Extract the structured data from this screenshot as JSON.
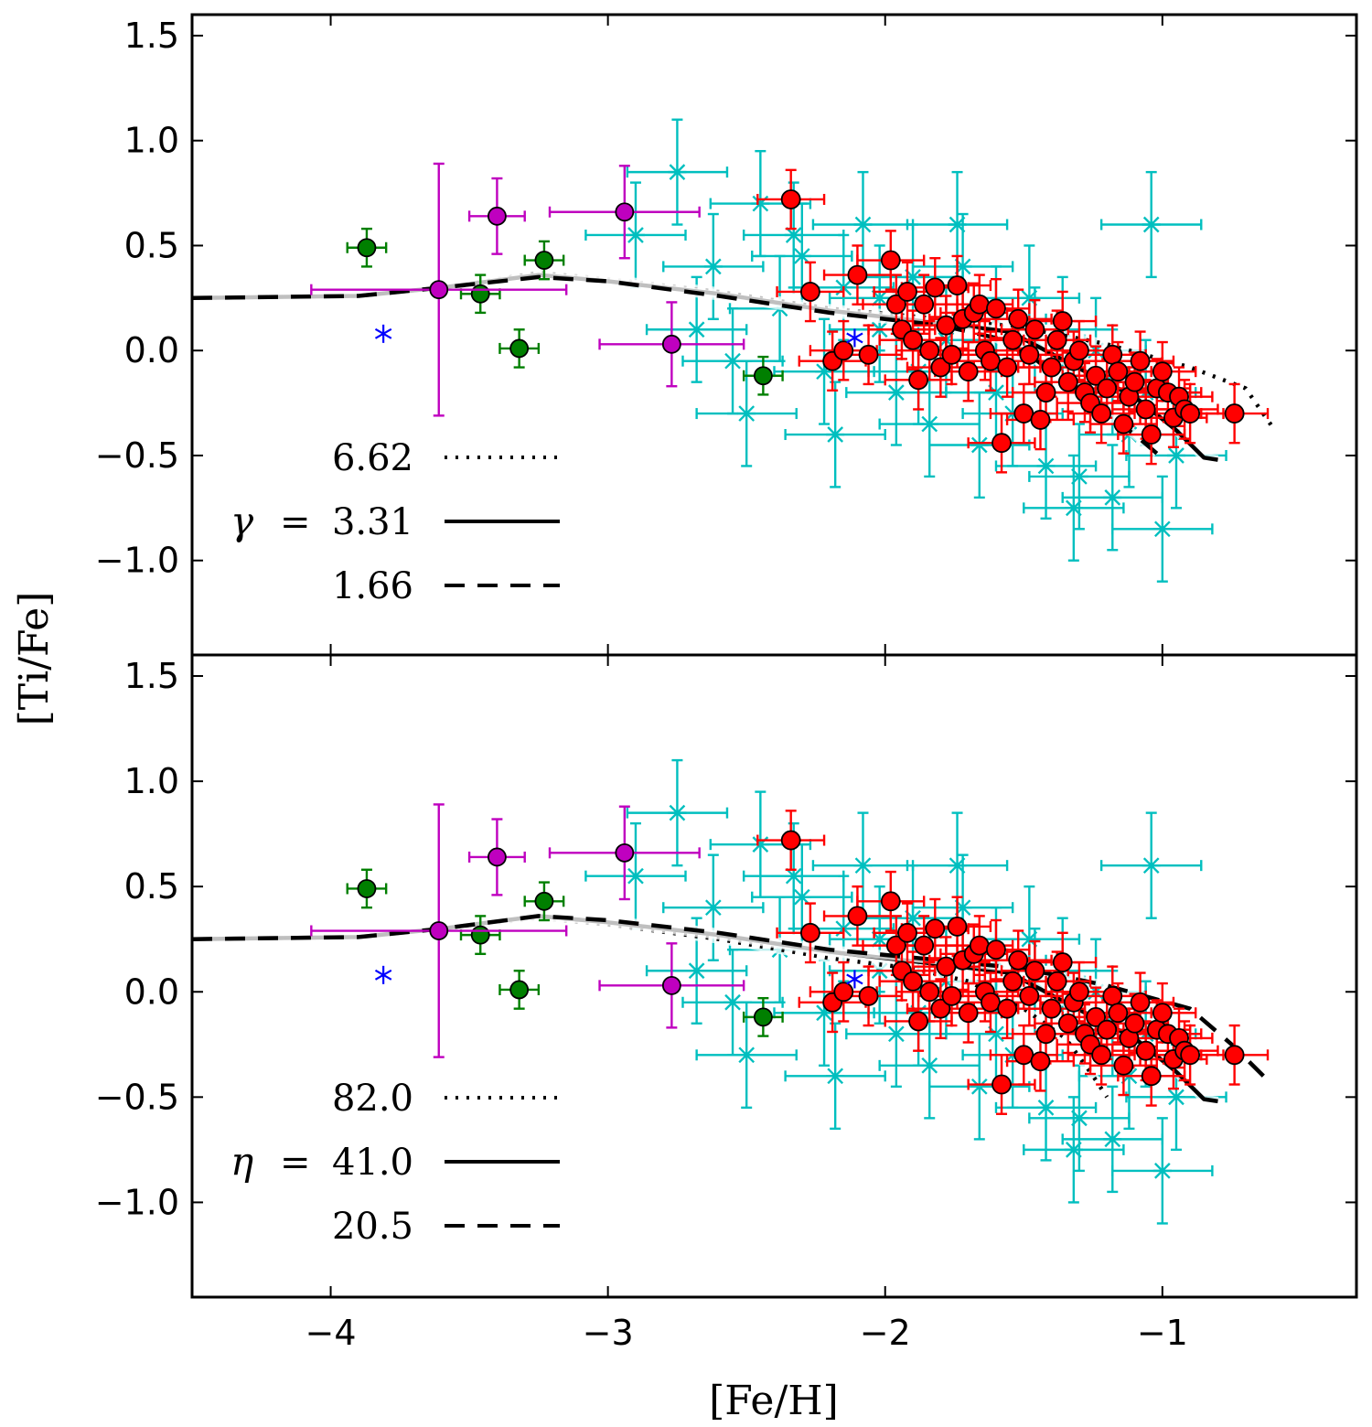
{
  "chart_data": [
    {
      "type": "scatter",
      "panel": "top",
      "xlabel": "",
      "ylabel": "[Ti/Fe]",
      "xlim": [
        -4.5,
        -0.3
      ],
      "ylim": [
        -1.45,
        1.6
      ],
      "xticks": [
        -4,
        -3,
        -2,
        -1
      ],
      "xtick_labels": [
        "",
        "",
        "",
        ""
      ],
      "yticks": [
        -1.0,
        -0.5,
        0.0,
        0.5,
        1.0,
        1.5
      ],
      "ytick_labels": [
        "−1.0",
        "−0.5",
        "0.0",
        "0.5",
        "1.0",
        "1.5"
      ],
      "grid": false,
      "legend": {
        "placement": "lower-left",
        "symbol": "γ",
        "equals": "=",
        "entries": [
          {
            "label": "6.62",
            "style": "dotted"
          },
          {
            "label": "3.31",
            "style": "solid"
          },
          {
            "label": "1.66",
            "style": "dashed"
          }
        ]
      },
      "model_curves": [
        {
          "style": "dotted",
          "points": [
            [
              -4.5,
              0.25
            ],
            [
              -3.9,
              0.26
            ],
            [
              -3.6,
              0.3
            ],
            [
              -3.25,
              0.37
            ],
            [
              -3.0,
              0.34
            ],
            [
              -2.6,
              0.28
            ],
            [
              -2.2,
              0.2
            ],
            [
              -1.8,
              0.15
            ],
            [
              -1.5,
              0.11
            ],
            [
              -1.2,
              0.03
            ],
            [
              -0.9,
              -0.08
            ],
            [
              -0.7,
              -0.18
            ],
            [
              -0.6,
              -0.37
            ]
          ]
        },
        {
          "style": "solid",
          "points": [
            [
              -4.5,
              0.25
            ],
            [
              -3.9,
              0.26
            ],
            [
              -3.6,
              0.3
            ],
            [
              -3.25,
              0.36
            ],
            [
              -3.0,
              0.33
            ],
            [
              -2.6,
              0.27
            ],
            [
              -2.2,
              0.19
            ],
            [
              -1.8,
              0.13
            ],
            [
              -1.55,
              0.09
            ],
            [
              -1.45,
              0.02
            ],
            [
              -1.25,
              -0.12
            ],
            [
              -1.1,
              -0.22
            ],
            [
              -0.95,
              -0.38
            ],
            [
              -0.85,
              -0.51
            ],
            [
              -0.8,
              -0.52
            ]
          ]
        },
        {
          "style": "dashed",
          "points": [
            [
              -4.5,
              0.25
            ],
            [
              -3.9,
              0.26
            ],
            [
              -3.6,
              0.3
            ],
            [
              -3.25,
              0.35
            ],
            [
              -3.0,
              0.33
            ],
            [
              -2.6,
              0.26
            ],
            [
              -2.2,
              0.18
            ],
            [
              -1.8,
              0.12
            ],
            [
              -1.6,
              0.06
            ],
            [
              -1.45,
              -0.05
            ],
            [
              -1.25,
              -0.26
            ],
            [
              -1.1,
              -0.4
            ],
            [
              -1.02,
              -0.49
            ]
          ]
        }
      ],
      "series": [
        {
          "marker": "green-circle",
          "x": [
            -3.87,
            -3.46,
            -3.32,
            -3.23,
            -2.44
          ],
          "y": [
            0.49,
            0.27,
            0.01,
            0.43,
            -0.12
          ],
          "xerr": 0.07,
          "yerr": 0.09
        },
        {
          "marker": "magenta-circle",
          "x": [
            -3.61,
            -3.4,
            -2.94,
            -2.77
          ],
          "y": [
            0.29,
            0.64,
            0.66,
            0.03
          ],
          "xerr": [
            0.46,
            0.1,
            0.27,
            0.26
          ],
          "yerr": [
            0.6,
            0.18,
            0.22,
            0.2
          ]
        },
        {
          "marker": "blue-star",
          "x": [
            -3.81,
            -2.11
          ],
          "y": [
            0.08,
            0.06
          ]
        },
        {
          "marker": "red-circle",
          "x": [
            -2.34,
            -2.27,
            -2.19,
            -2.15,
            -2.1,
            -2.06,
            -1.98,
            -1.96,
            -1.94,
            -1.92,
            -1.9,
            -1.88,
            -1.86,
            -1.84,
            -1.82,
            -1.8,
            -1.78,
            -1.76,
            -1.74,
            -1.72,
            -1.7,
            -1.68,
            -1.66,
            -1.64,
            -1.62,
            -1.6,
            -1.58,
            -1.56,
            -1.54,
            -1.52,
            -1.5,
            -1.48,
            -1.46,
            -1.44,
            -1.42,
            -1.4,
            -1.38,
            -1.36,
            -1.34,
            -1.32,
            -1.3,
            -1.28,
            -1.26,
            -1.24,
            -1.22,
            -1.2,
            -1.18,
            -1.16,
            -1.14,
            -1.12,
            -1.1,
            -1.08,
            -1.06,
            -1.04,
            -1.02,
            -1.0,
            -0.98,
            -0.96,
            -0.94,
            -0.92,
            -0.9,
            -0.74
          ],
          "y": [
            0.72,
            0.28,
            -0.05,
            0.0,
            0.36,
            -0.02,
            0.43,
            0.22,
            0.1,
            0.28,
            0.05,
            -0.14,
            0.22,
            0.0,
            0.3,
            -0.08,
            0.12,
            -0.02,
            0.31,
            0.15,
            -0.1,
            0.18,
            0.22,
            0.0,
            -0.05,
            0.2,
            -0.44,
            -0.08,
            0.05,
            0.15,
            -0.3,
            -0.02,
            0.1,
            -0.33,
            -0.2,
            -0.08,
            0.05,
            0.14,
            -0.15,
            -0.05,
            0.0,
            -0.2,
            -0.25,
            -0.12,
            -0.3,
            -0.18,
            -0.02,
            -0.1,
            -0.35,
            -0.22,
            -0.15,
            -0.05,
            -0.28,
            -0.4,
            -0.18,
            -0.1,
            -0.2,
            -0.32,
            -0.22,
            -0.28,
            -0.3,
            -0.3
          ],
          "xerr": 0.12,
          "yerr": 0.14
        },
        {
          "marker": "cyan-x",
          "note": "",
          "x": [
            -2.9,
            -2.75,
            -2.62,
            -2.55,
            -2.45,
            -2.38,
            -2.3,
            -2.22,
            -2.15,
            -2.08,
            -2.02,
            -1.96,
            -1.9,
            -1.84,
            -1.78,
            -1.72,
            -1.66,
            -1.6,
            -1.54,
            -1.48,
            -1.42,
            -1.36,
            -1.3,
            -1.24,
            -1.18,
            -1.12,
            -1.06,
            -1.0,
            -0.95,
            -2.68,
            -2.5,
            -2.33,
            -2.18,
            -2.02,
            -1.88,
            -1.74,
            -1.6,
            -1.46,
            -1.32,
            -1.18,
            -1.04
          ],
          "y": [
            0.55,
            0.85,
            0.4,
            -0.05,
            0.7,
            0.2,
            0.45,
            -0.1,
            0.3,
            0.6,
            0.1,
            -0.2,
            0.35,
            -0.35,
            0.05,
            0.4,
            -0.45,
            0.15,
            -0.3,
            0.25,
            -0.55,
            0.1,
            -0.6,
            0.0,
            -0.7,
            -0.4,
            -0.2,
            -0.85,
            -0.5,
            0.1,
            -0.3,
            0.55,
            -0.4,
            0.25,
            -0.1,
            0.6,
            -0.2,
            0.05,
            -0.75,
            -0.15,
            0.6
          ],
          "xerr": 0.18,
          "yerr": 0.25
        }
      ]
    },
    {
      "type": "scatter",
      "panel": "bottom",
      "xlabel": "[Fe/H]",
      "ylabel": "[Ti/Fe]",
      "xlim": [
        -4.5,
        -0.3
      ],
      "ylim": [
        -1.45,
        1.6
      ],
      "xticks": [
        -4,
        -3,
        -2,
        -1
      ],
      "xtick_labels": [
        "−4",
        "−3",
        "−2",
        "−1"
      ],
      "yticks": [
        -1.0,
        -0.5,
        0.0,
        0.5,
        1.0,
        1.5
      ],
      "ytick_labels": [
        "−1.0",
        "−0.5",
        "0.0",
        "0.5",
        "1.0",
        "1.5"
      ],
      "grid": false,
      "legend": {
        "placement": "lower-left",
        "symbol": "η",
        "equals": "=",
        "entries": [
          {
            "label": "82.0",
            "style": "dotted"
          },
          {
            "label": "41.0",
            "style": "solid"
          },
          {
            "label": "20.5",
            "style": "dashed"
          }
        ]
      },
      "model_curves": [
        {
          "style": "dotted",
          "points": [
            [
              -4.5,
              0.25
            ],
            [
              -3.9,
              0.26
            ],
            [
              -3.6,
              0.3
            ],
            [
              -3.25,
              0.35
            ],
            [
              -3.0,
              0.32
            ],
            [
              -2.6,
              0.25
            ],
            [
              -2.2,
              0.16
            ],
            [
              -1.9,
              0.11
            ],
            [
              -1.7,
              0.05
            ],
            [
              -1.5,
              -0.08
            ],
            [
              -1.35,
              -0.22
            ],
            [
              -1.25,
              -0.4
            ],
            [
              -1.2,
              -0.5
            ]
          ]
        },
        {
          "style": "solid",
          "points": [
            [
              -4.5,
              0.25
            ],
            [
              -3.9,
              0.26
            ],
            [
              -3.6,
              0.3
            ],
            [
              -3.25,
              0.36
            ],
            [
              -3.0,
              0.33
            ],
            [
              -2.6,
              0.27
            ],
            [
              -2.2,
              0.19
            ],
            [
              -1.8,
              0.13
            ],
            [
              -1.55,
              0.09
            ],
            [
              -1.45,
              0.02
            ],
            [
              -1.25,
              -0.12
            ],
            [
              -1.1,
              -0.22
            ],
            [
              -0.95,
              -0.38
            ],
            [
              -0.85,
              -0.51
            ],
            [
              -0.8,
              -0.52
            ]
          ]
        },
        {
          "style": "dashed",
          "points": [
            [
              -4.5,
              0.25
            ],
            [
              -3.9,
              0.26
            ],
            [
              -3.6,
              0.3
            ],
            [
              -3.25,
              0.36
            ],
            [
              -3.0,
              0.34
            ],
            [
              -2.6,
              0.28
            ],
            [
              -2.2,
              0.2
            ],
            [
              -1.8,
              0.15
            ],
            [
              -1.5,
              0.11
            ],
            [
              -1.2,
              0.03
            ],
            [
              -0.9,
              -0.08
            ],
            [
              -0.75,
              -0.25
            ],
            [
              -0.62,
              -0.42
            ]
          ]
        }
      ],
      "series": [
        {
          "marker": "green-circle",
          "x": [
            -3.87,
            -3.46,
            -3.32,
            -3.23,
            -2.44
          ],
          "y": [
            0.49,
            0.27,
            0.01,
            0.43,
            -0.12
          ],
          "xerr": 0.07,
          "yerr": 0.09
        },
        {
          "marker": "magenta-circle",
          "x": [
            -3.61,
            -3.4,
            -2.94,
            -2.77
          ],
          "y": [
            0.29,
            0.64,
            0.66,
            0.03
          ],
          "xerr": [
            0.46,
            0.1,
            0.27,
            0.26
          ],
          "yerr": [
            0.6,
            0.18,
            0.22,
            0.2
          ]
        },
        {
          "marker": "blue-star",
          "x": [
            -3.81,
            -2.11
          ],
          "y": [
            0.08,
            0.06
          ]
        },
        {
          "marker": "red-circle",
          "x": [
            -2.34,
            -2.27,
            -2.19,
            -2.15,
            -2.1,
            -2.06,
            -1.98,
            -1.96,
            -1.94,
            -1.92,
            -1.9,
            -1.88,
            -1.86,
            -1.84,
            -1.82,
            -1.8,
            -1.78,
            -1.76,
            -1.74,
            -1.72,
            -1.7,
            -1.68,
            -1.66,
            -1.64,
            -1.62,
            -1.6,
            -1.58,
            -1.56,
            -1.54,
            -1.52,
            -1.5,
            -1.48,
            -1.46,
            -1.44,
            -1.42,
            -1.4,
            -1.38,
            -1.36,
            -1.34,
            -1.32,
            -1.3,
            -1.28,
            -1.26,
            -1.24,
            -1.22,
            -1.2,
            -1.18,
            -1.16,
            -1.14,
            -1.12,
            -1.1,
            -1.08,
            -1.06,
            -1.04,
            -1.02,
            -1.0,
            -0.98,
            -0.96,
            -0.94,
            -0.92,
            -0.9,
            -0.74
          ],
          "y": [
            0.72,
            0.28,
            -0.05,
            0.0,
            0.36,
            -0.02,
            0.43,
            0.22,
            0.1,
            0.28,
            0.05,
            -0.14,
            0.22,
            0.0,
            0.3,
            -0.08,
            0.12,
            -0.02,
            0.31,
            0.15,
            -0.1,
            0.18,
            0.22,
            0.0,
            -0.05,
            0.2,
            -0.44,
            -0.08,
            0.05,
            0.15,
            -0.3,
            -0.02,
            0.1,
            -0.33,
            -0.2,
            -0.08,
            0.05,
            0.14,
            -0.15,
            -0.05,
            0.0,
            -0.2,
            -0.25,
            -0.12,
            -0.3,
            -0.18,
            -0.02,
            -0.1,
            -0.35,
            -0.22,
            -0.15,
            -0.05,
            -0.28,
            -0.4,
            -0.18,
            -0.1,
            -0.2,
            -0.32,
            -0.22,
            -0.28,
            -0.3,
            -0.3
          ],
          "xerr": 0.12,
          "yerr": 0.14
        },
        {
          "marker": "cyan-x",
          "x": [
            -2.9,
            -2.75,
            -2.62,
            -2.55,
            -2.45,
            -2.38,
            -2.3,
            -2.22,
            -2.15,
            -2.08,
            -2.02,
            -1.96,
            -1.9,
            -1.84,
            -1.78,
            -1.72,
            -1.66,
            -1.6,
            -1.54,
            -1.48,
            -1.42,
            -1.36,
            -1.3,
            -1.24,
            -1.18,
            -1.12,
            -1.06,
            -1.0,
            -0.95,
            -2.68,
            -2.5,
            -2.33,
            -2.18,
            -2.02,
            -1.88,
            -1.74,
            -1.6,
            -1.46,
            -1.32,
            -1.18,
            -1.04
          ],
          "y": [
            0.55,
            0.85,
            0.4,
            -0.05,
            0.7,
            0.2,
            0.45,
            -0.1,
            0.3,
            0.6,
            0.1,
            -0.2,
            0.35,
            -0.35,
            0.05,
            0.4,
            -0.45,
            0.15,
            -0.3,
            0.25,
            -0.55,
            0.1,
            -0.6,
            0.0,
            -0.7,
            -0.4,
            -0.2,
            -0.85,
            -0.5,
            0.1,
            -0.3,
            0.55,
            -0.4,
            0.25,
            -0.1,
            0.6,
            -0.2,
            0.05,
            -0.75,
            -0.15,
            0.6
          ],
          "xerr": 0.18,
          "yerr": 0.25
        }
      ]
    }
  ],
  "colors": {
    "cyan": "#00bfbf",
    "red": "#ff0000",
    "green": "#007f00",
    "magenta": "#bf00bf",
    "blue": "#0000ff",
    "curve": "#000000"
  }
}
